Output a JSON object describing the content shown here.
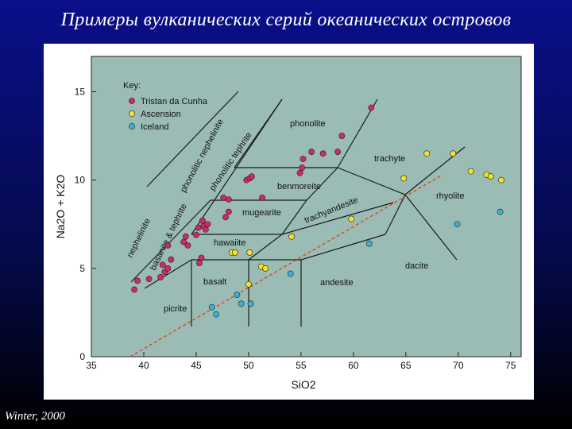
{
  "slide": {
    "title": "Примеры вулканических серий океанических островов",
    "credit": "Winter, 2000"
  },
  "chart_data": {
    "type": "scatter",
    "title": "",
    "xlabel": "SiO2",
    "ylabel": "Na2O + K2O",
    "xlim": [
      35,
      76
    ],
    "ylim": [
      0,
      17
    ],
    "xticks": [
      35,
      40,
      45,
      50,
      55,
      60,
      65,
      70,
      75
    ],
    "yticks": [
      0,
      5,
      10,
      15
    ],
    "plot_background": "#9bbcb4",
    "key": {
      "title": "Key:"
    },
    "series": [
      {
        "name": "Tristan da Cunha",
        "color": "#d4266a",
        "points": [
          [
            39.1,
            3.8
          ],
          [
            39.4,
            4.3
          ],
          [
            40.5,
            4.4
          ],
          [
            41.6,
            4.5
          ],
          [
            41.8,
            5.2
          ],
          [
            42.0,
            4.8
          ],
          [
            42.3,
            5.0
          ],
          [
            42.6,
            5.5
          ],
          [
            42.3,
            6.3
          ],
          [
            43.8,
            6.5
          ],
          [
            44.0,
            6.8
          ],
          [
            44.2,
            6.3
          ],
          [
            45.0,
            6.9
          ],
          [
            45.2,
            7.3
          ],
          [
            45.7,
            7.4
          ],
          [
            45.6,
            7.7
          ],
          [
            46.1,
            7.5
          ],
          [
            45.9,
            7.2
          ],
          [
            45.5,
            5.6
          ],
          [
            45.3,
            5.3
          ],
          [
            47.8,
            7.9
          ],
          [
            48.1,
            8.2
          ],
          [
            47.6,
            9.0
          ],
          [
            48.1,
            8.9
          ],
          [
            49.8,
            10.0
          ],
          [
            50.1,
            10.1
          ],
          [
            50.3,
            10.2
          ],
          [
            51.3,
            9.0
          ],
          [
            54.9,
            10.4
          ],
          [
            55.1,
            10.7
          ],
          [
            55.2,
            11.2
          ],
          [
            56.0,
            11.6
          ],
          [
            57.1,
            11.5
          ],
          [
            58.5,
            11.6
          ],
          [
            58.9,
            12.5
          ],
          [
            61.7,
            14.1
          ]
        ]
      },
      {
        "name": "Ascension",
        "color": "#f5e22a",
        "points": [
          [
            48.4,
            5.9
          ],
          [
            48.7,
            5.9
          ],
          [
            50.1,
            5.9
          ],
          [
            50.0,
            4.1
          ],
          [
            51.2,
            5.1
          ],
          [
            51.6,
            5.0
          ],
          [
            54.1,
            6.8
          ],
          [
            59.8,
            7.8
          ],
          [
            64.8,
            10.1
          ],
          [
            67.0,
            11.5
          ],
          [
            69.5,
            11.5
          ],
          [
            71.2,
            10.5
          ],
          [
            72.7,
            10.3
          ],
          [
            73.1,
            10.2
          ],
          [
            74.1,
            10.0
          ]
        ]
      },
      {
        "name": "Iceland",
        "color": "#3ab0d6",
        "points": [
          [
            46.5,
            2.8
          ],
          [
            46.9,
            2.4
          ],
          [
            48.9,
            3.5
          ],
          [
            49.3,
            3.0
          ],
          [
            50.2,
            3.0
          ],
          [
            54.0,
            4.7
          ],
          [
            61.5,
            6.4
          ],
          [
            69.9,
            7.5
          ],
          [
            74.0,
            8.2
          ]
        ]
      }
    ],
    "field_labels": [
      "phonolite",
      "phonolitic nephelinite",
      "phonolitic tephrite",
      "trachyte",
      "benmoreite",
      "rhyolite",
      "mugearite",
      "trachyandesite",
      "nephelinite",
      "basanite & tephrite",
      "hawaiite",
      "basalt",
      "andesite",
      "dacite",
      "picrite"
    ],
    "alkaline_divide": {
      "from": [
        38.7,
        0
      ],
      "to": [
        68.5,
        10.3
      ],
      "style": "dashed",
      "color": "#e0441c"
    }
  }
}
